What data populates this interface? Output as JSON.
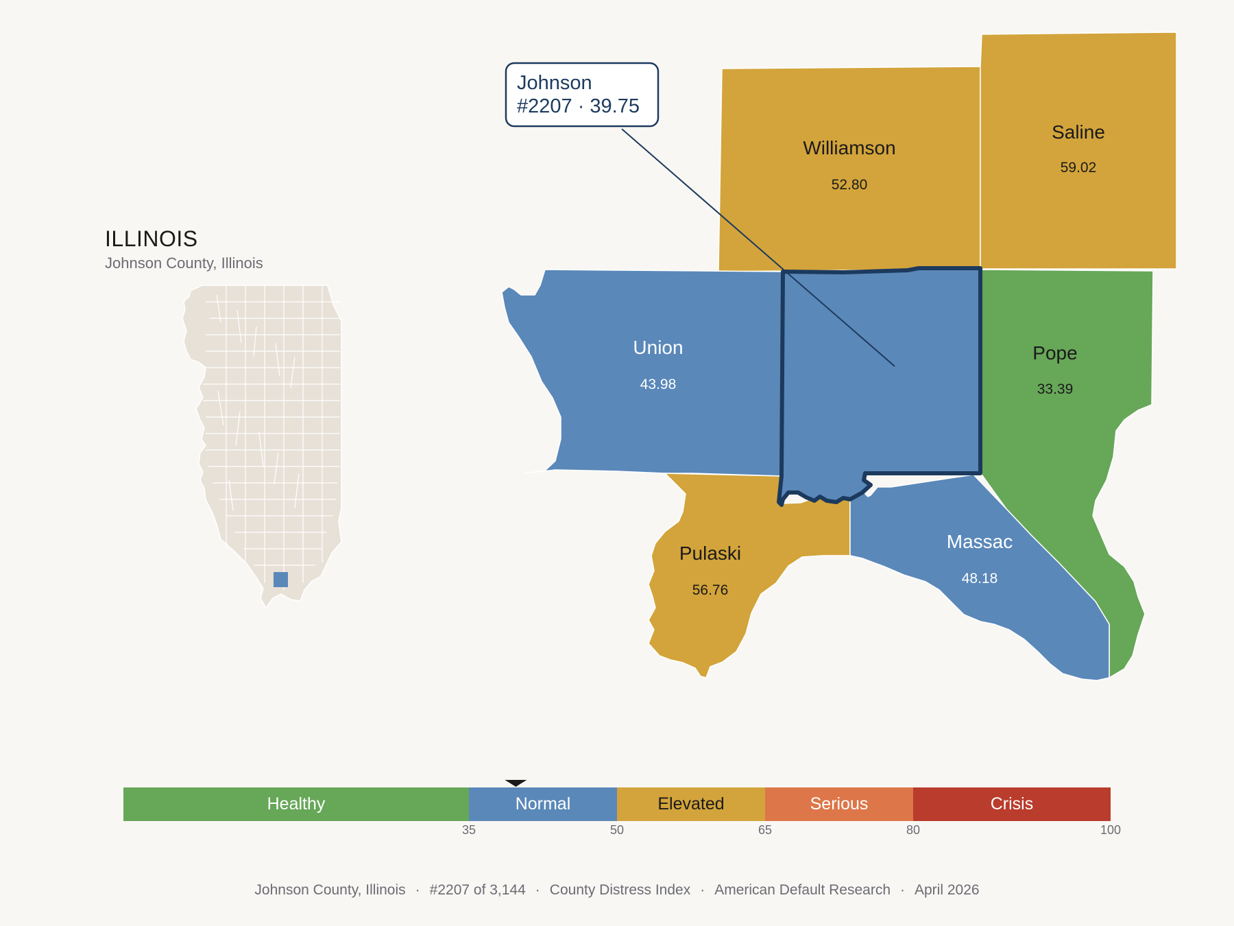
{
  "inset": {
    "state": "ILLINOIS",
    "subtitle": "Johnson County, Illinois"
  },
  "callout": {
    "name": "Johnson",
    "detail": "#2207 · 39.75"
  },
  "counties": {
    "williamson": {
      "name": "Williamson",
      "value": "52.80"
    },
    "saline": {
      "name": "Saline",
      "value": "59.02"
    },
    "union": {
      "name": "Union",
      "value": "43.98"
    },
    "pope": {
      "name": "Pope",
      "value": "33.39"
    },
    "pulaski": {
      "name": "Pulaski",
      "value": "56.76"
    },
    "massac": {
      "name": "Massac",
      "value": "48.18"
    }
  },
  "scale": {
    "marker_value": 39.75,
    "bands": [
      {
        "label": "Healthy",
        "color": "#67a758"
      },
      {
        "label": "Normal",
        "color": "#5a88b9"
      },
      {
        "label": "Elevated",
        "color": "#d3a43b"
      },
      {
        "label": "Serious",
        "color": "#dd7649"
      },
      {
        "label": "Crisis",
        "color": "#b93c2c"
      }
    ],
    "ticks": [
      "35",
      "50",
      "65",
      "80",
      "100"
    ]
  },
  "colors": {
    "healthy": "#67a758",
    "normal": "#5a88b9",
    "elevated": "#d3a43b",
    "outline": "#1c3a5e",
    "inset_land": "#e7e1d7"
  },
  "footer": {
    "place": "Johnson County, Illinois",
    "rank": "#2207 of 3,144",
    "index": "County Distress Index",
    "source": "American Default Research",
    "date": "April 2026"
  }
}
